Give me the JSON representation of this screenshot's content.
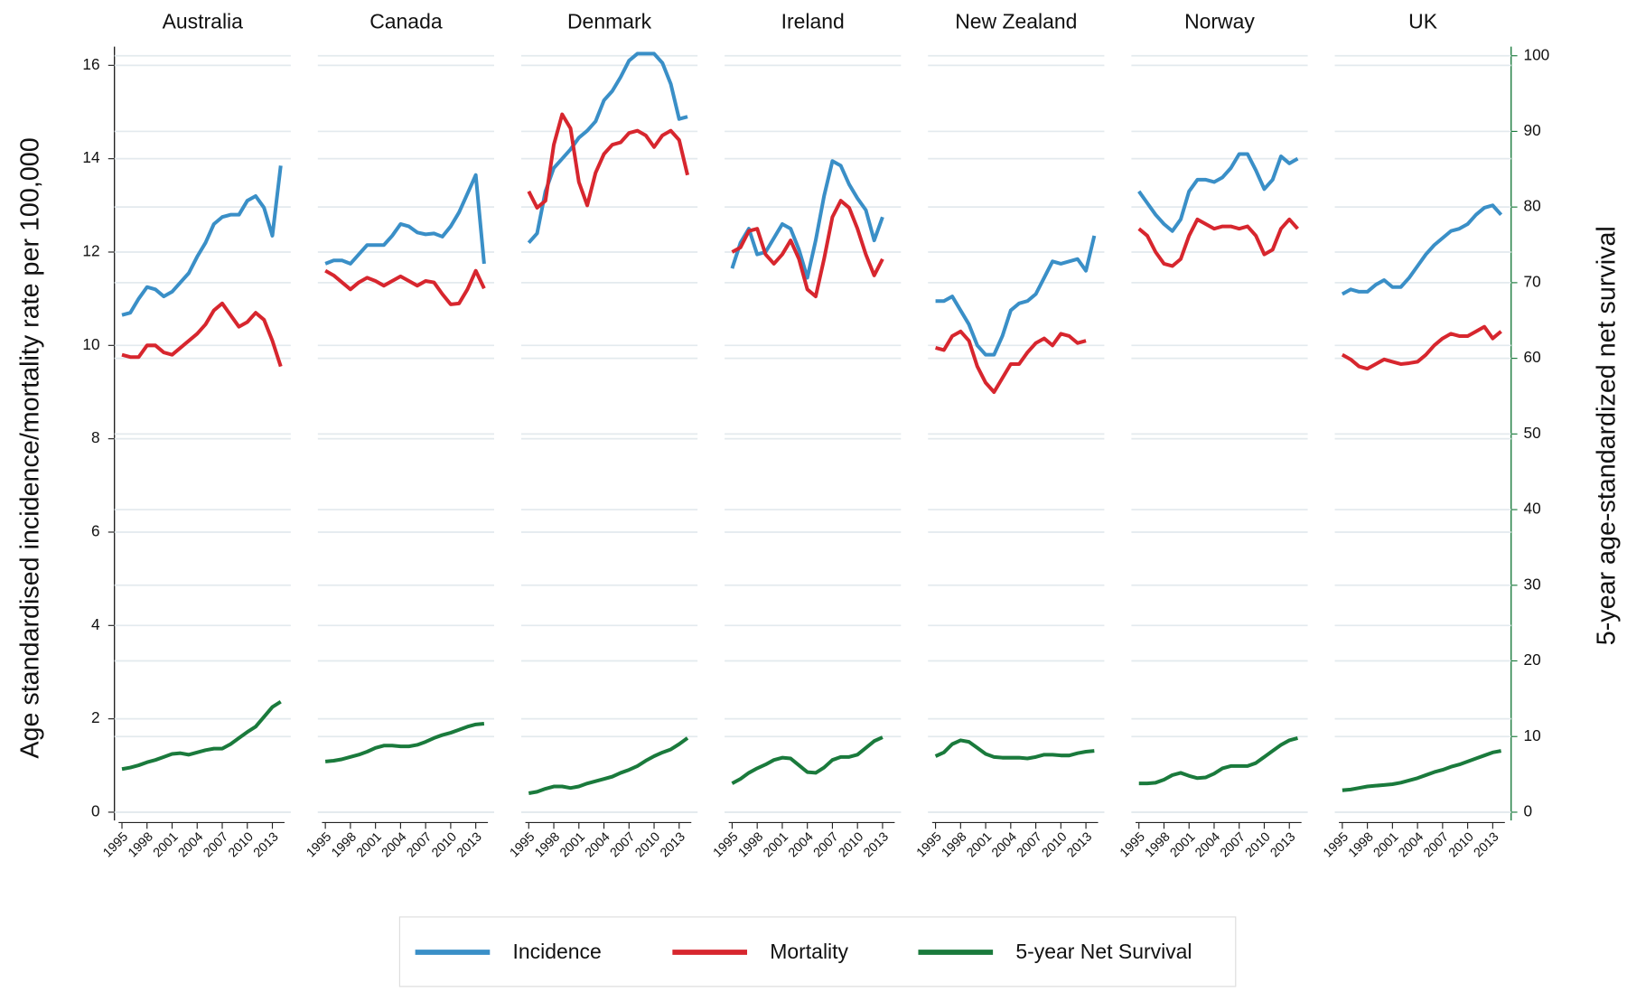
{
  "chart_data": {
    "type": "line",
    "ylabel": "Age standardised incidence/mortality rate per 100,000",
    "y2label": "5-year age-standardized net survival",
    "panels": [
      "Australia",
      "Canada",
      "Denmark",
      "Ireland",
      "New Zealand",
      "Norway",
      "UK"
    ],
    "x": [
      1995,
      1996,
      1997,
      1998,
      1999,
      2000,
      2001,
      2002,
      2003,
      2004,
      2005,
      2006,
      2007,
      2008,
      2009,
      2010,
      2011,
      2012,
      2013,
      2014
    ],
    "xlim": [
      1994.1,
      2015.2
    ],
    "xticks": [
      1995,
      1998,
      2001,
      2004,
      2007,
      2010,
      2013
    ],
    "ylim": [
      0,
      16.4
    ],
    "yticks": [
      0,
      2,
      4,
      6,
      8,
      10,
      12,
      14,
      16
    ],
    "y2lim": [
      0,
      101.2
    ],
    "y2ticks": [
      0,
      10,
      20,
      30,
      40,
      50,
      60,
      70,
      80,
      90,
      100
    ],
    "y2color": "#1a7a3c",
    "grid": true,
    "legend": "bottom",
    "series": [
      {
        "name": "Incidence",
        "color": "#3a8fc7",
        "values": [
          [
            10.65,
            10.7,
            11.0,
            11.25,
            11.2,
            11.05,
            11.15,
            11.35,
            11.55,
            11.9,
            12.2,
            12.6,
            12.75,
            12.8,
            12.8,
            13.1,
            13.2,
            12.95,
            12.35,
            13.85
          ],
          [
            11.75,
            11.82,
            11.82,
            11.75,
            11.95,
            12.15,
            12.15,
            12.15,
            12.35,
            12.6,
            12.55,
            12.42,
            12.38,
            12.4,
            12.33,
            12.55,
            12.85,
            13.25,
            13.65,
            11.75
          ],
          [
            12.2,
            12.4,
            13.3,
            13.8,
            14.0,
            14.2,
            14.45,
            14.6,
            14.8,
            15.25,
            15.45,
            15.75,
            16.1,
            16.25,
            16.25,
            16.25,
            16.05,
            15.6,
            14.85,
            14.9
          ],
          [
            11.65,
            12.2,
            12.5,
            11.95,
            12.0,
            12.3,
            12.6,
            12.5,
            12.05,
            11.45,
            12.25,
            13.2,
            13.95,
            13.85,
            13.45,
            13.15,
            12.9,
            12.25,
            12.75,
            null
          ],
          [
            10.95,
            10.95,
            11.05,
            10.75,
            10.45,
            10.0,
            9.8,
            9.8,
            10.2,
            10.75,
            10.9,
            10.95,
            11.1,
            11.45,
            11.8,
            11.75,
            11.8,
            11.85,
            11.6,
            12.35
          ],
          [
            13.3,
            13.05,
            12.8,
            12.6,
            12.45,
            12.7,
            13.3,
            13.55,
            13.55,
            13.5,
            13.6,
            13.8,
            14.1,
            14.1,
            13.75,
            13.35,
            13.55,
            14.05,
            13.9,
            14.0
          ],
          [
            11.1,
            11.2,
            11.15,
            11.15,
            11.3,
            11.4,
            11.25,
            11.25,
            11.45,
            11.7,
            11.95,
            12.15,
            12.3,
            12.45,
            12.5,
            12.6,
            12.8,
            12.95,
            13.0,
            12.8
          ]
        ]
      },
      {
        "name": "Mortality",
        "color": "#d7262e",
        "values": [
          [
            9.8,
            9.75,
            9.75,
            10.0,
            10.0,
            9.85,
            9.8,
            9.95,
            10.1,
            10.25,
            10.45,
            10.75,
            10.9,
            10.65,
            10.4,
            10.5,
            10.7,
            10.55,
            10.1,
            9.55
          ],
          [
            11.6,
            11.5,
            11.35,
            11.2,
            11.35,
            11.45,
            11.38,
            11.28,
            11.38,
            11.48,
            11.38,
            11.28,
            11.38,
            11.35,
            11.1,
            10.88,
            10.9,
            11.2,
            11.6,
            11.22
          ],
          [
            13.3,
            12.95,
            13.1,
            14.3,
            14.95,
            14.65,
            13.5,
            13.0,
            13.7,
            14.1,
            14.3,
            14.35,
            14.55,
            14.6,
            14.5,
            14.25,
            14.5,
            14.6,
            14.4,
            13.65
          ],
          [
            12.0,
            12.1,
            12.45,
            12.5,
            11.95,
            11.75,
            11.95,
            12.25,
            11.85,
            11.2,
            11.05,
            11.85,
            12.75,
            13.1,
            12.95,
            12.5,
            11.95,
            11.5,
            11.85,
            null
          ],
          [
            9.95,
            9.9,
            10.2,
            10.3,
            10.1,
            9.55,
            9.2,
            9.0,
            9.3,
            9.6,
            9.6,
            9.85,
            10.05,
            10.15,
            10.0,
            10.25,
            10.2,
            10.05,
            10.1,
            null
          ],
          [
            12.5,
            12.35,
            12.0,
            11.75,
            11.7,
            11.85,
            12.35,
            12.7,
            12.6,
            12.5,
            12.55,
            12.55,
            12.5,
            12.55,
            12.35,
            11.95,
            12.05,
            12.5,
            12.7,
            12.5
          ],
          [
            9.8,
            9.7,
            9.55,
            9.5,
            9.6,
            9.7,
            9.65,
            9.6,
            9.62,
            9.65,
            9.8,
            10.0,
            10.15,
            10.25,
            10.2,
            10.2,
            10.3,
            10.4,
            10.15,
            10.3
          ]
        ]
      },
      {
        "name": "5-year Net Survival",
        "color": "#1a7a3c",
        "axis": "y2",
        "values": [
          [
            5.7,
            5.9,
            6.2,
            6.6,
            6.9,
            7.3,
            7.7,
            7.8,
            7.6,
            7.9,
            8.2,
            8.4,
            8.4,
            9.0,
            9.8,
            10.6,
            11.3,
            12.6,
            13.9,
            14.6
          ],
          [
            6.7,
            6.8,
            7.0,
            7.3,
            7.6,
            8.0,
            8.5,
            8.8,
            8.8,
            8.7,
            8.7,
            8.9,
            9.3,
            9.8,
            10.2,
            10.5,
            10.9,
            11.3,
            11.6,
            11.7
          ],
          [
            2.5,
            2.7,
            3.1,
            3.4,
            3.4,
            3.2,
            3.4,
            3.8,
            4.1,
            4.4,
            4.7,
            5.2,
            5.6,
            6.1,
            6.8,
            7.4,
            7.9,
            8.3,
            9.0,
            9.8
          ],
          [
            3.8,
            4.4,
            5.2,
            5.8,
            6.3,
            6.9,
            7.2,
            7.1,
            6.2,
            5.3,
            5.2,
            5.9,
            6.9,
            7.3,
            7.3,
            7.6,
            8.5,
            9.4,
            9.9,
            null
          ],
          [
            7.4,
            7.9,
            9.0,
            9.5,
            9.3,
            8.5,
            7.7,
            7.3,
            7.2,
            7.2,
            7.2,
            7.1,
            7.3,
            7.6,
            7.6,
            7.5,
            7.5,
            7.8,
            8.0,
            8.1
          ],
          [
            3.8,
            3.8,
            3.9,
            4.3,
            4.9,
            5.2,
            4.8,
            4.5,
            4.6,
            5.1,
            5.8,
            6.1,
            6.1,
            6.1,
            6.5,
            7.3,
            8.1,
            8.9,
            9.5,
            9.8
          ],
          [
            2.9,
            3.0,
            3.2,
            3.4,
            3.5,
            3.6,
            3.7,
            3.9,
            4.2,
            4.5,
            4.9,
            5.3,
            5.6,
            6.0,
            6.3,
            6.7,
            7.1,
            7.5,
            7.9,
            8.1
          ]
        ]
      }
    ]
  }
}
